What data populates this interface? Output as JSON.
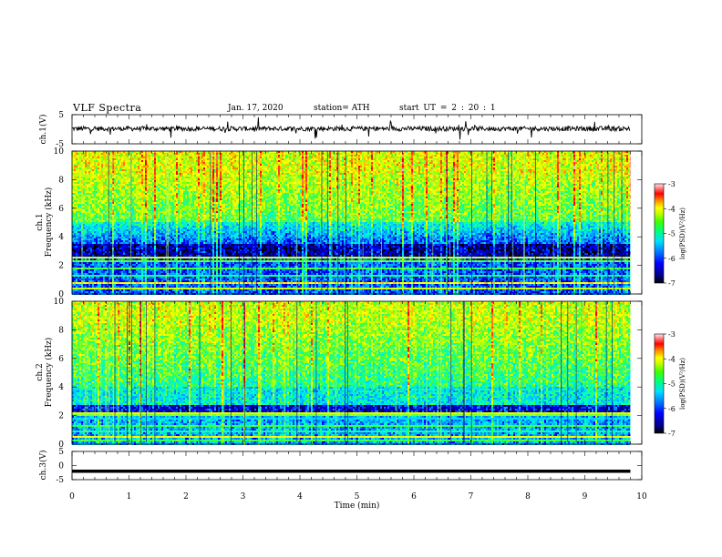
{
  "header": {
    "title": "VLF  Spectra",
    "date": "Jan. 17, 2020",
    "station": "station= ATH",
    "start": "start  UT  =   2  : 20 : 1"
  },
  "chart_data": [
    {
      "type": "line",
      "name": "ch.1 waveform panel",
      "ylabel": "ch.1(V)",
      "ylim": [
        -5,
        5
      ],
      "yticks": [
        "5",
        "-5"
      ],
      "xlim": [
        0,
        10
      ],
      "y_level_approx": 0.2,
      "data_end_min": 9.8
    },
    {
      "type": "heatmap",
      "name": "ch.1 spectrogram",
      "ylabel": "ch.1\nFrequency (kHz)",
      "ylim": [
        0,
        10
      ],
      "yticks": [
        "0",
        "2",
        "4",
        "6",
        "8",
        "10"
      ],
      "xlim": [
        0,
        10
      ],
      "data_end_min": 9.8,
      "colorbar": {
        "label": "log(PSD)(V²/Hz)",
        "range": [
          -7,
          -3
        ],
        "ticks": [
          "-3",
          "-4",
          "-5",
          "-6",
          "-7"
        ]
      }
    },
    {
      "type": "heatmap",
      "name": "ch.2 spectrogram",
      "ylabel": "ch.2\nFrequency (kHz)",
      "ylim": [
        0,
        10
      ],
      "yticks": [
        "0",
        "2",
        "4",
        "6",
        "8",
        "10"
      ],
      "xlim": [
        0,
        10
      ],
      "data_end_min": 9.8,
      "colorbar": {
        "label": "log(PSD)(V²/Hz)",
        "range": [
          -7,
          -3
        ],
        "ticks": [
          "-3",
          "-4",
          "-5",
          "-6",
          "-7"
        ]
      }
    },
    {
      "type": "line",
      "name": "ch.3 waveform panel",
      "ylabel": "ch.3(V)",
      "ylim": [
        -5,
        5
      ],
      "yticks": [
        "5",
        "0",
        "-5"
      ],
      "xlim": [
        0,
        10
      ],
      "xlabel": "Time  (min)",
      "xticks": [
        "0",
        "1",
        "2",
        "3",
        "4",
        "5",
        "6",
        "7",
        "8",
        "9",
        "10"
      ],
      "y_level_approx": -2.0,
      "data_end_min": 9.8
    }
  ],
  "labels": {
    "ch1v": "ch.1(V)",
    "ch1f": "ch.1",
    "ch1fu": "Frequency  (kHz)",
    "ch2f": "ch.2",
    "ch2fu": "Frequency  (kHz)",
    "ch3v": "ch.3(V)",
    "cbar_label": "log(PSD)(V²/Hz)",
    "xlabel": "Time  (min)"
  },
  "colors": {
    "background": "#ffffff",
    "axis": "#000000",
    "colormap": [
      "#000000",
      "#00008b",
      "#0000ff",
      "#0080ff",
      "#00d0ff",
      "#00ffc0",
      "#40ff40",
      "#c0ff00",
      "#ffff00",
      "#ff8000",
      "#ff0000",
      "#ff7070",
      "#ffffff"
    ]
  }
}
